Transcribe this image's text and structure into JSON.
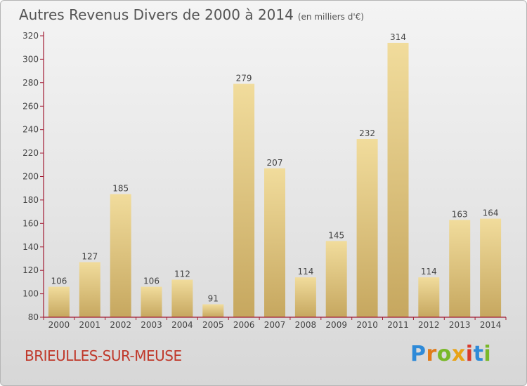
{
  "header": {
    "title": "Autres Revenus Divers de 2000 à 2014",
    "unit": "(en milliers d'€)"
  },
  "footer": {
    "town": "BRIEULLES-SUR-MEUSE",
    "logo": [
      "P",
      "r",
      "o",
      "x",
      "i",
      "t",
      "i"
    ]
  },
  "colors": {
    "bar_light": "#f1dc9c",
    "bar_dark": "#c6a75f",
    "axis": "#a11a33",
    "text": "#444444",
    "town": "#c0392b"
  },
  "chart_data": {
    "type": "bar",
    "title": "Autres Revenus Divers de 2000 à 2014",
    "subtitle": "(en milliers d'€)",
    "xlabel": "",
    "ylabel": "",
    "categories": [
      "2000",
      "2001",
      "2002",
      "2003",
      "2004",
      "2005",
      "2006",
      "2007",
      "2008",
      "2009",
      "2010",
      "2011",
      "2012",
      "2013",
      "2014"
    ],
    "values": [
      106,
      127,
      185,
      106,
      112,
      91,
      279,
      207,
      114,
      145,
      232,
      314,
      114,
      163,
      164
    ],
    "ylim": [
      80,
      320
    ],
    "yticks": [
      80,
      100,
      120,
      140,
      160,
      180,
      200,
      220,
      240,
      260,
      280,
      300,
      320
    ],
    "grid": false,
    "data_labels": true
  }
}
